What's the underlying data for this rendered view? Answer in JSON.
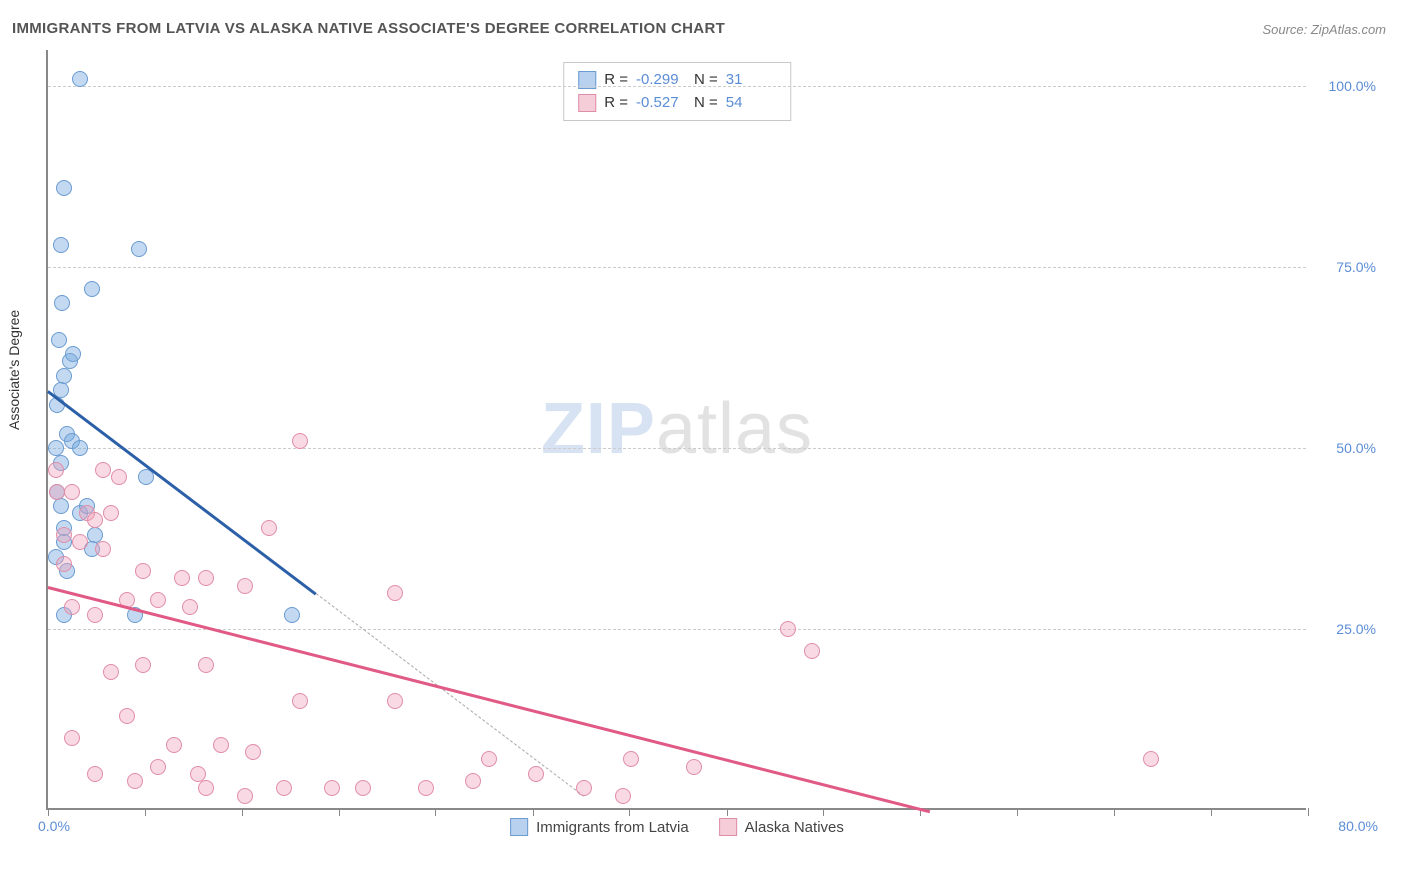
{
  "title": "IMMIGRANTS FROM LATVIA VS ALASKA NATIVE ASSOCIATE'S DEGREE CORRELATION CHART",
  "source": "Source: ZipAtlas.com",
  "ylabel": "Associate's Degree",
  "watermark_zip": "ZIP",
  "watermark_atlas": "atlas",
  "chart": {
    "type": "scatter",
    "xlim": [
      0,
      80
    ],
    "ylim": [
      0,
      105
    ],
    "yticks": [
      25,
      50,
      75,
      100
    ],
    "ytick_labels": [
      "25.0%",
      "50.0%",
      "75.0%",
      "100.0%"
    ],
    "xtick_positions": [
      0,
      6.15,
      12.3,
      18.46,
      24.6,
      30.77,
      36.92,
      43.08,
      49.23,
      55.38,
      61.54,
      67.69,
      73.85,
      80
    ],
    "xaxis_start": "0.0%",
    "xaxis_end": "80.0%",
    "background_color": "#ffffff",
    "grid_color": "#cccccc",
    "axis_color": "#888888",
    "label_fontsize": 14,
    "title_fontsize": 15,
    "marker_size": 16
  },
  "series": [
    {
      "name": "Immigrants from Latvia",
      "color_fill": "rgba(120,170,225,0.45)",
      "color_stroke": "#6b9bd1",
      "trend_color": "#2b5fa8",
      "swatch_fill": "#b8d1ee",
      "swatch_border": "#6b9bd1",
      "R": "-0.299",
      "N": "31",
      "trend": {
        "x1": 0,
        "y1": 58,
        "x2": 17,
        "y2": 30
      },
      "trend_ext": {
        "x1": 17,
        "y1": 30,
        "x2": 34,
        "y2": 2
      },
      "points": [
        [
          2.0,
          101
        ],
        [
          1.0,
          86
        ],
        [
          0.8,
          78
        ],
        [
          5.8,
          77.5
        ],
        [
          0.7,
          65
        ],
        [
          2.8,
          72
        ],
        [
          0.9,
          70
        ],
        [
          1.0,
          60
        ],
        [
          1.4,
          62
        ],
        [
          1.6,
          63
        ],
        [
          0.6,
          56
        ],
        [
          0.8,
          58
        ],
        [
          1.2,
          52
        ],
        [
          1.5,
          51
        ],
        [
          2.0,
          50
        ],
        [
          0.5,
          50
        ],
        [
          0.8,
          48
        ],
        [
          6.2,
          46
        ],
        [
          2.0,
          41
        ],
        [
          2.5,
          42
        ],
        [
          0.6,
          44
        ],
        [
          1.0,
          39
        ],
        [
          3.0,
          38
        ],
        [
          0.5,
          35
        ],
        [
          1.0,
          37
        ],
        [
          1.2,
          33
        ],
        [
          2.8,
          36
        ],
        [
          1.0,
          27
        ],
        [
          5.5,
          27
        ],
        [
          15.5,
          27
        ],
        [
          0.8,
          42
        ]
      ]
    },
    {
      "name": "Alaska Natives",
      "color_fill": "rgba(240,160,185,0.40)",
      "color_stroke": "#e08da8",
      "trend_color": "#e05a85",
      "swatch_fill": "#f5cdd9",
      "swatch_border": "#e08da8",
      "R": "-0.527",
      "N": "54",
      "trend": {
        "x1": 0,
        "y1": 31,
        "x2": 56,
        "y2": 0
      },
      "points": [
        [
          16,
          51
        ],
        [
          0.5,
          47
        ],
        [
          3.5,
          47
        ],
        [
          4.5,
          46
        ],
        [
          0.6,
          44
        ],
        [
          1.5,
          44
        ],
        [
          2.5,
          41
        ],
        [
          3.0,
          40
        ],
        [
          4.0,
          41
        ],
        [
          1.0,
          38
        ],
        [
          2.0,
          37
        ],
        [
          14,
          39
        ],
        [
          3.5,
          36
        ],
        [
          6.0,
          33
        ],
        [
          8.5,
          32
        ],
        [
          10,
          32
        ],
        [
          1.0,
          34
        ],
        [
          12.5,
          31
        ],
        [
          22,
          30
        ],
        [
          5.0,
          29
        ],
        [
          7.0,
          29
        ],
        [
          1.5,
          28
        ],
        [
          3.0,
          27
        ],
        [
          9.0,
          28
        ],
        [
          47,
          25
        ],
        [
          48.5,
          22
        ],
        [
          4.0,
          19
        ],
        [
          6.0,
          20
        ],
        [
          10,
          20
        ],
        [
          16,
          15
        ],
        [
          22,
          15
        ],
        [
          5.0,
          13
        ],
        [
          1.5,
          10
        ],
        [
          8.0,
          9
        ],
        [
          11,
          9
        ],
        [
          13,
          8
        ],
        [
          28,
          7
        ],
        [
          37,
          7
        ],
        [
          41,
          6
        ],
        [
          70,
          7
        ],
        [
          7.0,
          6
        ],
        [
          3.0,
          5
        ],
        [
          18,
          3
        ],
        [
          15,
          3
        ],
        [
          20,
          3
        ],
        [
          24,
          3
        ],
        [
          34,
          3
        ],
        [
          36.5,
          2
        ],
        [
          10,
          3
        ],
        [
          12.5,
          2
        ],
        [
          5.5,
          4
        ],
        [
          9.5,
          5
        ],
        [
          27,
          4
        ],
        [
          31,
          5
        ]
      ]
    }
  ],
  "stats_legend": {
    "rows": [
      {
        "swatch_fill": "#b8d1ee",
        "swatch_border": "#6b9bd1",
        "R_label": "R =",
        "R": "-0.299",
        "N_label": "N =",
        "N": "31"
      },
      {
        "swatch_fill": "#f5cdd9",
        "swatch_border": "#e08da8",
        "R_label": "R =",
        "R": "-0.527",
        "N_label": "N =",
        "N": "54"
      }
    ]
  },
  "bottom_legend": [
    {
      "swatch_fill": "#b8d1ee",
      "swatch_border": "#6b9bd1",
      "label": "Immigrants from Latvia"
    },
    {
      "swatch_fill": "#f5cdd9",
      "swatch_border": "#e08da8",
      "label": "Alaska Natives"
    }
  ]
}
